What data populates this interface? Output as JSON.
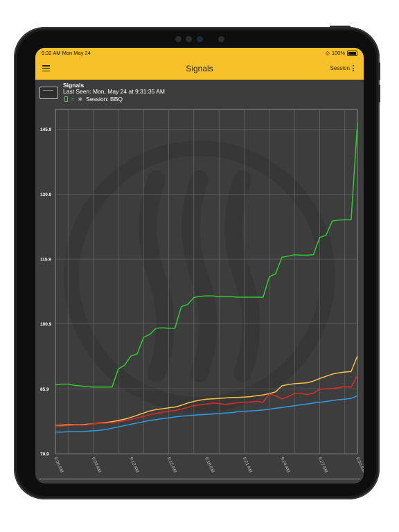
{
  "status_bar": {
    "time": "9:32 AM   Mon May 24",
    "battery": "100%"
  },
  "app_bar": {
    "title": "Signals",
    "session_button": "Session"
  },
  "device": {
    "name": "Signals",
    "last_seen": "Last Seen: Mon, May 24 at 9:31:35 AM",
    "session": "Session: BBQ"
  },
  "colors": {
    "accent": "#f7c12a",
    "green": "#2ecc2e",
    "yellow": "#f5c343",
    "red": "#e02b2b",
    "blue": "#2e9be6"
  },
  "chart_data": {
    "type": "line",
    "ylim": [
      70.9,
      150.5
    ],
    "y_ticks": [
      70.9,
      85.9,
      100.9,
      115.9,
      130.9,
      145.9
    ],
    "y_tick_labels": [
      "70.9",
      "85.9",
      "100.9",
      "115.9",
      "130.9",
      "145.9"
    ],
    "xlim": [
      0,
      24
    ],
    "x_tick_values": [
      1,
      3,
      5,
      7,
      9,
      11,
      13,
      15,
      17,
      19,
      21,
      23
    ],
    "x_tick_labels": [
      "9:06 AM",
      "9:09 AM",
      "9:12 AM",
      "9:15 AM",
      "9:18 AM",
      "9:21 AM",
      "9:24 AM",
      "9:27 AM",
      "9:30 AM"
    ],
    "x_tick_label_values": [
      0,
      3,
      6,
      9,
      12,
      15,
      18,
      21,
      24
    ],
    "grid": true,
    "series": [
      {
        "color_key": "green",
        "x": [
          0,
          0.5,
          1,
          1.5,
          2,
          2.5,
          3,
          3.5,
          4,
          4.5,
          5,
          5.5,
          6,
          6.5,
          7,
          7.5,
          8,
          8.5,
          9,
          9.5,
          10,
          10.5,
          11,
          11.5,
          12,
          12.5,
          13,
          13.5,
          14,
          14.5,
          15,
          15.5,
          16,
          16.5,
          17,
          17.5,
          18,
          18.5,
          19,
          19.5,
          20,
          20.5,
          21,
          21.5,
          22,
          22.5,
          23,
          23.5,
          24
        ],
        "y": [
          86.8,
          87.0,
          87.0,
          86.7,
          86.6,
          86.4,
          86.3,
          86.3,
          86.3,
          86.3,
          90.5,
          91.4,
          93.5,
          94.0,
          97.8,
          98.5,
          99.9,
          100.0,
          99.9,
          99.9,
          104.9,
          105.4,
          107.0,
          107.3,
          107.4,
          107.4,
          107.2,
          107.2,
          107.2,
          107.1,
          107.1,
          107.1,
          107.1,
          107.1,
          111.8,
          112.5,
          116.3,
          116.6,
          116.9,
          116.8,
          116.8,
          116.9,
          120.9,
          121.4,
          124.7,
          124.9,
          125.0,
          125.0,
          147.3
        ]
      },
      {
        "color_key": "yellow",
        "x": [
          0,
          0.5,
          1,
          1.5,
          2,
          2.5,
          3,
          3.5,
          4,
          4.5,
          5,
          5.5,
          6,
          6.5,
          7,
          7.5,
          8,
          8.5,
          9,
          9.5,
          10,
          10.5,
          11,
          11.5,
          12,
          12.5,
          13,
          13.5,
          14,
          14.5,
          15,
          15.5,
          16,
          16.5,
          17,
          17.5,
          18,
          18.5,
          19,
          19.5,
          20,
          20.5,
          21,
          21.5,
          22,
          22.5,
          23,
          23.5,
          24
        ],
        "y": [
          77.4,
          77.5,
          77.6,
          77.6,
          77.6,
          77.7,
          77.8,
          78.0,
          78.1,
          78.3,
          78.6,
          78.9,
          79.3,
          79.8,
          80.3,
          80.8,
          81.1,
          81.3,
          81.5,
          81.7,
          82.1,
          82.6,
          83.0,
          83.3,
          83.5,
          83.6,
          83.7,
          83.8,
          83.9,
          83.9,
          84.0,
          84.1,
          84.3,
          84.5,
          84.8,
          85.2,
          86.6,
          86.9,
          87.1,
          87.2,
          87.3,
          87.7,
          88.3,
          88.8,
          89.3,
          89.6,
          89.8,
          89.9,
          93.5
        ]
      },
      {
        "color_key": "red",
        "x": [
          0,
          0.5,
          1,
          1.5,
          2,
          2.5,
          3,
          3.5,
          4,
          4.5,
          5,
          5.5,
          6,
          6.5,
          7,
          7.5,
          8,
          8.5,
          9,
          9.5,
          10,
          10.5,
          11,
          11.5,
          12,
          12.5,
          13,
          13.5,
          14,
          14.5,
          15,
          15.5,
          16,
          16.5,
          17,
          17.5,
          18,
          18.5,
          19,
          19.5,
          20,
          20.5,
          21,
          21.5,
          22,
          22.5,
          23,
          23.5,
          24
        ],
        "y": [
          77.3,
          77.3,
          77.4,
          77.5,
          77.5,
          77.6,
          77.8,
          77.9,
          78.0,
          78.1,
          78.3,
          78.5,
          78.8,
          79.2,
          79.5,
          79.9,
          80.2,
          80.5,
          80.7,
          80.9,
          81.2,
          81.6,
          82.0,
          82.2,
          82.4,
          82.6,
          82.5,
          82.3,
          82.5,
          82.7,
          82.8,
          82.9,
          83.0,
          82.8,
          84.7,
          84.3,
          83.6,
          84.1,
          84.8,
          84.9,
          84.6,
          84.9,
          85.8,
          85.9,
          86.0,
          86.2,
          86.4,
          86.3,
          89.0
        ]
      },
      {
        "color_key": "blue",
        "x": [
          0,
          0.5,
          1,
          1.5,
          2,
          2.5,
          3,
          3.5,
          4,
          4.5,
          5,
          5.5,
          6,
          6.5,
          7,
          7.5,
          8,
          8.5,
          9,
          9.5,
          10,
          10.5,
          11,
          11.5,
          12,
          12.5,
          13,
          13.5,
          14,
          14.5,
          15,
          15.5,
          16,
          16.5,
          17,
          17.5,
          18,
          18.5,
          19,
          19.5,
          20,
          20.5,
          21,
          21.5,
          22,
          22.5,
          23,
          23.5,
          24
        ],
        "y": [
          75.9,
          75.9,
          76.0,
          76.0,
          76.0,
          76.1,
          76.2,
          76.3,
          76.5,
          76.8,
          77.1,
          77.4,
          77.7,
          78.0,
          78.3,
          78.6,
          78.8,
          79.0,
          79.2,
          79.4,
          79.6,
          79.7,
          79.8,
          79.9,
          80.0,
          80.1,
          80.2,
          80.3,
          80.4,
          80.6,
          80.7,
          80.8,
          80.9,
          81.0,
          81.2,
          81.4,
          81.6,
          81.8,
          82.0,
          82.2,
          82.4,
          82.6,
          82.8,
          83.0,
          83.2,
          83.4,
          83.5,
          83.7,
          84.3
        ]
      }
    ]
  }
}
